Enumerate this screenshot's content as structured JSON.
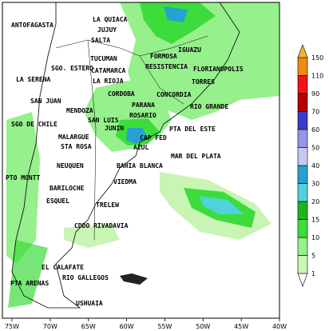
{
  "cities": [
    "ANTOFAGASTA",
    "LA QUIACA",
    "JUJUY",
    "SALTA",
    "TUCUMAN",
    "SGO. ESTERO",
    "CATAMARCA",
    "LA SERENA",
    "LA RIOJA",
    "FORMOSA",
    "RESISTENCIA",
    "IGUAZU",
    "FLORIANOPOLIS",
    "TORRES",
    "CORDOBA",
    "CONCORDIA",
    "SAN JUAN",
    "PARANA",
    "ROSARIO",
    "RIO GRANDE",
    "MENDOZA",
    "SAN LUIS",
    "SGO DE CHILE",
    "JUNIN",
    "PTA DEL ESTE",
    "MALARGUE",
    "CAP FED",
    "STA ROSA",
    "AZUL",
    "MAR DEL PLATA",
    "NEUQUEN",
    "BAHIA BLANCA",
    "PTO MONTT",
    "VIEDMA",
    "BARILOCHE",
    "ESQUEL",
    "TRELEW",
    "CDDO RIVADAVIA",
    "EL CALAFATE",
    "RIO GALLEGOS",
    "PTA ARENAS",
    "USHUAIA"
  ],
  "longitudes": [
    "75W",
    "70W",
    "65W",
    "60W",
    "55W",
    "50W",
    "45W",
    "40W"
  ],
  "legend": {
    "levels": [
      1,
      5,
      10,
      15,
      20,
      30,
      40,
      50,
      60,
      70,
      90,
      110,
      150
    ],
    "colors": [
      "#ffffff",
      "#c8f5b4",
      "#96f08c",
      "#3cdc3c",
      "#1eb41e",
      "#50d2dc",
      "#28a0d2",
      "#c8c8f0",
      "#9696e6",
      "#3c3cc8",
      "#b40000",
      "#f01414",
      "#f08c14",
      "#f5b428"
    ]
  }
}
